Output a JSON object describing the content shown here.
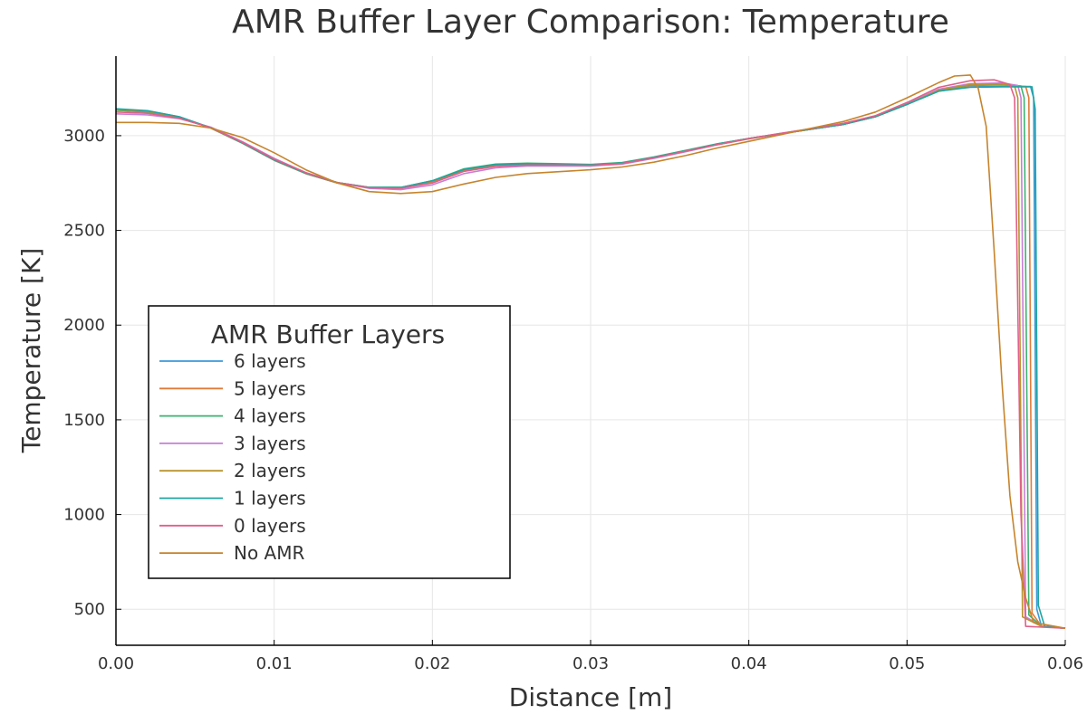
{
  "chart_data": {
    "type": "line",
    "title": "AMR Buffer Layer Comparison: Temperature",
    "xlabel": "Distance [m]",
    "ylabel": "Temperature [K]",
    "xlim": [
      0,
      0.06
    ],
    "ylim": [
      310,
      3420
    ],
    "xticks": [
      0,
      0.01,
      0.02,
      0.03,
      0.04,
      0.05,
      0.06
    ],
    "xtick_labels": [
      "0.00",
      "0.01",
      "0.02",
      "0.03",
      "0.04",
      "0.05",
      "0.06"
    ],
    "yticks": [
      500,
      1000,
      1500,
      2000,
      2500,
      3000
    ],
    "ytick_labels": [
      "500",
      "1000",
      "1500",
      "2000",
      "2500",
      "3000"
    ],
    "grid": true,
    "legend": {
      "title": "AMR Buffer Layers",
      "placement": "left-middle"
    },
    "series": [
      {
        "name": "6 layers",
        "color": "#3a9ad9",
        "x": [
          0,
          0.002,
          0.004,
          0.006,
          0.008,
          0.01,
          0.012,
          0.014,
          0.016,
          0.018,
          0.02,
          0.022,
          0.024,
          0.026,
          0.028,
          0.03,
          0.032,
          0.034,
          0.036,
          0.038,
          0.04,
          0.042,
          0.044,
          0.046,
          0.048,
          0.05,
          0.052,
          0.054,
          0.056,
          0.0578,
          0.058,
          0.0582,
          0.0585,
          0.06
        ],
        "y": [
          3140,
          3130,
          3100,
          3040,
          2960,
          2870,
          2800,
          2750,
          2725,
          2725,
          2760,
          2820,
          2845,
          2850,
          2848,
          2845,
          2855,
          2885,
          2920,
          2955,
          2985,
          3010,
          3035,
          3060,
          3100,
          3165,
          3235,
          3258,
          3260,
          3260,
          3200,
          500,
          410,
          400
        ]
      },
      {
        "name": "5 layers",
        "color": "#e07b39",
        "x": [
          0,
          0.002,
          0.004,
          0.006,
          0.008,
          0.01,
          0.012,
          0.014,
          0.016,
          0.018,
          0.02,
          0.022,
          0.024,
          0.026,
          0.028,
          0.03,
          0.032,
          0.034,
          0.036,
          0.038,
          0.04,
          0.042,
          0.044,
          0.046,
          0.048,
          0.05,
          0.052,
          0.054,
          0.056,
          0.0575,
          0.0577,
          0.0579,
          0.0585,
          0.06
        ],
        "y": [
          3135,
          3125,
          3095,
          3040,
          2960,
          2870,
          2800,
          2750,
          2725,
          2725,
          2755,
          2815,
          2840,
          2845,
          2845,
          2842,
          2852,
          2882,
          2918,
          2952,
          2983,
          3010,
          3035,
          3062,
          3100,
          3165,
          3240,
          3265,
          3268,
          3260,
          3200,
          480,
          410,
          400
        ]
      },
      {
        "name": "4 layers",
        "color": "#3cb371",
        "x": [
          0,
          0.002,
          0.004,
          0.006,
          0.008,
          0.01,
          0.012,
          0.014,
          0.016,
          0.018,
          0.02,
          0.022,
          0.024,
          0.026,
          0.028,
          0.03,
          0.032,
          0.034,
          0.036,
          0.038,
          0.04,
          0.042,
          0.044,
          0.046,
          0.048,
          0.05,
          0.052,
          0.054,
          0.056,
          0.0572,
          0.0574,
          0.0577,
          0.0585,
          0.06
        ],
        "y": [
          3135,
          3125,
          3098,
          3040,
          2962,
          2872,
          2802,
          2752,
          2727,
          2727,
          2762,
          2825,
          2850,
          2855,
          2852,
          2848,
          2858,
          2888,
          2922,
          2957,
          2985,
          3010,
          3035,
          3060,
          3100,
          3165,
          3240,
          3268,
          3270,
          3262,
          3200,
          470,
          410,
          400
        ]
      },
      {
        "name": "3 layers",
        "color": "#c77fd6",
        "x": [
          0,
          0.002,
          0.004,
          0.006,
          0.008,
          0.01,
          0.012,
          0.014,
          0.016,
          0.018,
          0.02,
          0.022,
          0.024,
          0.026,
          0.028,
          0.03,
          0.032,
          0.034,
          0.036,
          0.038,
          0.04,
          0.042,
          0.044,
          0.046,
          0.048,
          0.05,
          0.052,
          0.054,
          0.056,
          0.057,
          0.0572,
          0.0575,
          0.0585,
          0.06
        ],
        "y": [
          3115,
          3110,
          3090,
          3045,
          2968,
          2880,
          2805,
          2752,
          2722,
          2715,
          2740,
          2800,
          2830,
          2840,
          2840,
          2840,
          2850,
          2880,
          2915,
          2952,
          2985,
          3012,
          3038,
          3065,
          3105,
          3170,
          3245,
          3275,
          3278,
          3265,
          3200,
          460,
          410,
          400
        ]
      },
      {
        "name": "2 layers",
        "color": "#b8932e",
        "x": [
          0,
          0.002,
          0.004,
          0.006,
          0.008,
          0.01,
          0.012,
          0.014,
          0.016,
          0.018,
          0.02,
          0.022,
          0.024,
          0.026,
          0.028,
          0.03,
          0.032,
          0.034,
          0.036,
          0.038,
          0.04,
          0.042,
          0.044,
          0.046,
          0.048,
          0.05,
          0.052,
          0.054,
          0.056,
          0.0568,
          0.057,
          0.0573,
          0.0585,
          0.06
        ],
        "y": [
          3138,
          3128,
          3098,
          3040,
          2962,
          2872,
          2802,
          2752,
          2727,
          2727,
          2760,
          2820,
          2845,
          2850,
          2848,
          2845,
          2855,
          2885,
          2920,
          2955,
          2985,
          3010,
          3035,
          3060,
          3100,
          3165,
          3240,
          3270,
          3272,
          3262,
          3200,
          460,
          410,
          400
        ]
      },
      {
        "name": "1 layers",
        "color": "#20a5a0",
        "x": [
          0,
          0.002,
          0.004,
          0.006,
          0.008,
          0.01,
          0.012,
          0.014,
          0.016,
          0.018,
          0.02,
          0.022,
          0.024,
          0.026,
          0.028,
          0.03,
          0.032,
          0.034,
          0.036,
          0.038,
          0.04,
          0.042,
          0.044,
          0.046,
          0.048,
          0.05,
          0.052,
          0.054,
          0.056,
          0.0579,
          0.0581,
          0.0583,
          0.0587,
          0.06
        ],
        "y": [
          3142,
          3132,
          3100,
          3042,
          2962,
          2872,
          2802,
          2752,
          2727,
          2727,
          2762,
          2822,
          2848,
          2852,
          2850,
          2846,
          2856,
          2886,
          2920,
          2956,
          2985,
          3010,
          3035,
          3060,
          3100,
          3165,
          3235,
          3255,
          3258,
          3258,
          3140,
          520,
          410,
          400
        ]
      },
      {
        "name": "0 layers",
        "color": "#e0608a",
        "x": [
          0,
          0.002,
          0.004,
          0.006,
          0.008,
          0.01,
          0.012,
          0.014,
          0.016,
          0.018,
          0.02,
          0.022,
          0.024,
          0.026,
          0.028,
          0.03,
          0.032,
          0.034,
          0.036,
          0.038,
          0.04,
          0.042,
          0.044,
          0.046,
          0.048,
          0.05,
          0.052,
          0.054,
          0.0555,
          0.0565,
          0.0568,
          0.0572,
          0.0575,
          0.06
        ],
        "y": [
          3125,
          3118,
          3092,
          3042,
          2965,
          2877,
          2805,
          2752,
          2725,
          2722,
          2750,
          2812,
          2838,
          2845,
          2845,
          2843,
          2853,
          2883,
          2918,
          2953,
          2985,
          3012,
          3038,
          3065,
          3105,
          3175,
          3255,
          3290,
          3295,
          3270,
          3200,
          1000,
          410,
          400
        ]
      },
      {
        "name": "No AMR",
        "color": "#c6842c",
        "x": [
          0,
          0.002,
          0.004,
          0.006,
          0.008,
          0.01,
          0.012,
          0.014,
          0.016,
          0.018,
          0.02,
          0.022,
          0.024,
          0.026,
          0.028,
          0.03,
          0.032,
          0.034,
          0.036,
          0.038,
          0.04,
          0.042,
          0.044,
          0.046,
          0.048,
          0.05,
          0.052,
          0.053,
          0.054,
          0.0545,
          0.055,
          0.0555,
          0.056,
          0.0565,
          0.057,
          0.0575,
          0.058,
          0.06
        ],
        "y": [
          3070,
          3070,
          3065,
          3040,
          2990,
          2910,
          2820,
          2750,
          2705,
          2695,
          2705,
          2745,
          2780,
          2800,
          2810,
          2820,
          2835,
          2860,
          2895,
          2935,
          2970,
          3005,
          3040,
          3075,
          3125,
          3200,
          3280,
          3315,
          3320,
          3250,
          3050,
          2400,
          1700,
          1100,
          750,
          560,
          430,
          400
        ]
      }
    ]
  }
}
